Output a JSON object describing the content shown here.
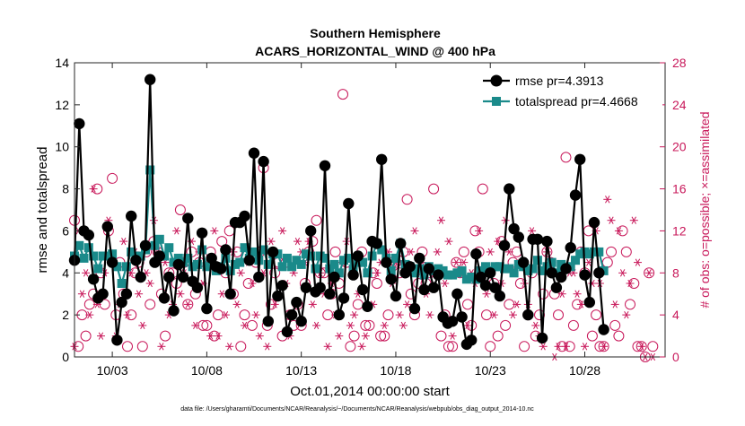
{
  "chart_data": {
    "type": "line",
    "title_line1": "Southern Hemisphere",
    "title_line2": "ACARS_HORIZONTAL_WIND @ 400 hPa",
    "xlabel": "Oct.01,2014 00:00:00 start",
    "ylabel_left": "rmse and totalspread",
    "ylabel_right": "# of obs: o=possible; ×=assimilated",
    "footnote": "data file: /Users/gharamti/Documents/NCAR/Reanalysis/~/Documents/NCAR/Reanalysis/webpub/obs_diag_output_2014-10.nc",
    "xlim": [
      1.0,
      32.25
    ],
    "ylim_left": [
      0,
      14
    ],
    "ylim_right": [
      0,
      28
    ],
    "yticks_left": [
      0,
      2,
      4,
      6,
      8,
      10,
      12,
      14
    ],
    "yticks_right": [
      0,
      4,
      8,
      12,
      16,
      20,
      24,
      28
    ],
    "xticks": [
      {
        "x": 3,
        "label": "10/03"
      },
      {
        "x": 8,
        "label": "10/08"
      },
      {
        "x": 13,
        "label": "10/13"
      },
      {
        "x": 18,
        "label": "10/18"
      },
      {
        "x": 23,
        "label": "10/23"
      },
      {
        "x": 28,
        "label": "10/28"
      }
    ],
    "colors": {
      "rmse": "#000000",
      "totalspread": "#1a8a8a",
      "obs": "#c8185a"
    },
    "legend_placement": "top-right",
    "series": [
      {
        "name": "rmse pr=4.3913",
        "key": "rmse",
        "values": [
          4.6,
          11.1,
          6.0,
          5.8,
          3.7,
          2.8,
          3.0,
          6.2,
          4.5,
          0.8,
          2.6,
          3.0,
          6.7,
          4.6,
          3.8,
          5.3,
          13.2,
          4.5,
          4.8,
          2.8,
          3.8,
          2.2,
          4.4,
          3.8,
          6.6,
          3.6,
          3.3,
          5.9,
          2.3,
          4.7,
          4.3,
          4.2,
          5.1,
          3.0,
          6.4,
          6.4,
          6.7,
          4.6,
          9.7,
          3.8,
          9.3,
          1.7,
          5.0,
          2.9,
          3.4,
          1.2,
          2.0,
          2.6,
          1.7,
          3.3,
          6.0,
          3.1,
          3.3,
          9.1,
          3.0,
          3.8,
          2.0,
          2.8,
          7.3,
          3.9,
          4.8,
          3.2,
          2.4,
          5.5,
          5.4,
          9.4,
          4.5,
          3.7,
          2.9,
          5.4,
          4.0,
          4.3,
          2.3,
          4.7,
          3.2,
          4.2,
          3.3,
          3.9,
          1.9,
          1.6,
          1.7,
          3.0,
          1.9,
          0.6,
          0.8,
          4.9,
          3.8,
          3.4,
          4.0,
          3.3,
          2.9,
          5.3,
          8.0,
          6.1,
          5.7,
          4.5,
          2.0,
          5.6,
          5.6,
          0.9,
          5.5,
          4.0,
          3.3,
          3.8,
          4.2,
          5.2,
          7.7,
          9.4,
          3.9,
          2.6,
          6.4,
          4.0,
          1.3
        ],
        "x0": 1.0,
        "dx": 0.25
      },
      {
        "name": "totalspread pr=4.4668",
        "key": "totalspread",
        "values": [
          4.8,
          5.3,
          4.7,
          5.2,
          4.8,
          4.2,
          4.8,
          4.8,
          4.9,
          4.3,
          3.5,
          4.3,
          5.0,
          4.8,
          4.8,
          5.1,
          8.9,
          5.3,
          5.6,
          4.8,
          5.2,
          4.5,
          4.7,
          4.5,
          4.7,
          4.3,
          4.4,
          5.1,
          4.3,
          4.5,
          4.1,
          4.3,
          4.7,
          4.1,
          4.4,
          4.5,
          5.2,
          4.7,
          5.0,
          4.6,
          5.1,
          4.4,
          4.9,
          4.9,
          4.3,
          4.7,
          4.3,
          4.6,
          4.4,
          4.9,
          4.8,
          4.2,
          4.8,
          4.7,
          4.2,
          4.4,
          4.0,
          4.6,
          4.7,
          4.2,
          4.5,
          4.5,
          4.0,
          4.8,
          5.4,
          5.1,
          4.7,
          4.1,
          4.7,
          5.4,
          4.4,
          4.3,
          4.0,
          4.2,
          3.9,
          4.3,
          4.1,
          4.2,
          4.1,
          3.9,
          3.9,
          4.0,
          4.1,
          3.7,
          3.8,
          3.7,
          4.1,
          4.3,
          4.1,
          4.3,
          4.3,
          4.2,
          4.2,
          4.0,
          4.4,
          4.3,
          4.1,
          4.2,
          4.6,
          4.1,
          4.3,
          4.5,
          4.0,
          4.4,
          4.2,
          4.3,
          4.6,
          4.9,
          5.0,
          4.9,
          5.0,
          5.0,
          4.1
        ],
        "x0": 1.0,
        "dx": 0.25
      }
    ],
    "obs_possible": [
      13,
      1,
      4,
      2,
      5,
      6,
      16,
      8,
      5,
      12,
      17,
      4,
      9,
      6,
      1,
      4,
      8,
      9,
      1,
      10,
      5,
      11,
      10,
      6,
      2,
      8,
      8,
      7,
      14,
      9,
      5,
      10,
      6,
      9,
      3,
      3,
      10,
      2,
      4,
      11,
      8,
      12,
      6,
      10,
      1,
      4,
      7,
      3,
      9,
      10,
      18,
      3,
      5,
      8,
      9,
      2,
      9,
      4,
      3,
      5,
      3,
      7,
      10,
      11,
      13,
      8,
      8,
      4,
      6,
      10,
      7,
      25,
      9,
      1,
      2,
      5,
      10,
      3,
      3,
      8,
      7,
      2,
      2,
      4,
      9,
      9,
      8,
      10,
      15,
      6,
      4,
      7,
      10,
      7,
      8,
      16,
      8,
      2,
      4,
      1,
      1,
      9,
      8,
      10,
      5,
      3,
      12,
      10,
      16,
      4,
      1,
      7,
      2,
      11,
      3,
      5,
      9,
      10,
      7,
      1,
      4,
      8,
      2,
      4,
      6,
      10,
      9,
      6,
      4,
      1,
      19,
      1,
      3,
      5,
      10,
      8,
      12,
      2,
      4,
      1,
      1,
      9,
      10,
      3,
      2,
      12,
      10,
      5,
      7,
      1,
      1,
      0,
      8,
      1
    ],
    "obs_assimilated": [
      1,
      12,
      6,
      8,
      4,
      16,
      5,
      2,
      8,
      13,
      9,
      2,
      5,
      11,
      4,
      8,
      10,
      6,
      3,
      8,
      7,
      13,
      10,
      1,
      9,
      4,
      5,
      12,
      6,
      8,
      5,
      11,
      3,
      10,
      7,
      9,
      2,
      12,
      2,
      6,
      4,
      1,
      10,
      5,
      8,
      3,
      9,
      7,
      4,
      2,
      8,
      1,
      11,
      5,
      6,
      12,
      7,
      2,
      8,
      11,
      10,
      9,
      11,
      5,
      3,
      8,
      6,
      1,
      7,
      4,
      2,
      9,
      11,
      3,
      4,
      6,
      1,
      2,
      8,
      5,
      8,
      9,
      3,
      10,
      7,
      9,
      4,
      3,
      5,
      10,
      12,
      8,
      9,
      6,
      4,
      8,
      10,
      13,
      7,
      11,
      2,
      9,
      8,
      9,
      3,
      8,
      7,
      12,
      8,
      6,
      10,
      4,
      11,
      7,
      13,
      10,
      4,
      5,
      9,
      7,
      5,
      12,
      3,
      2,
      1,
      10,
      9,
      0,
      1,
      6,
      1,
      8,
      8,
      6,
      5,
      1,
      9,
      7,
      12,
      7,
      1,
      15,
      13,
      5,
      12,
      8,
      4,
      7,
      13,
      9,
      1,
      0,
      8,
      0
    ],
    "obs_x0": 1.0,
    "obs_dx": 0.2
  }
}
